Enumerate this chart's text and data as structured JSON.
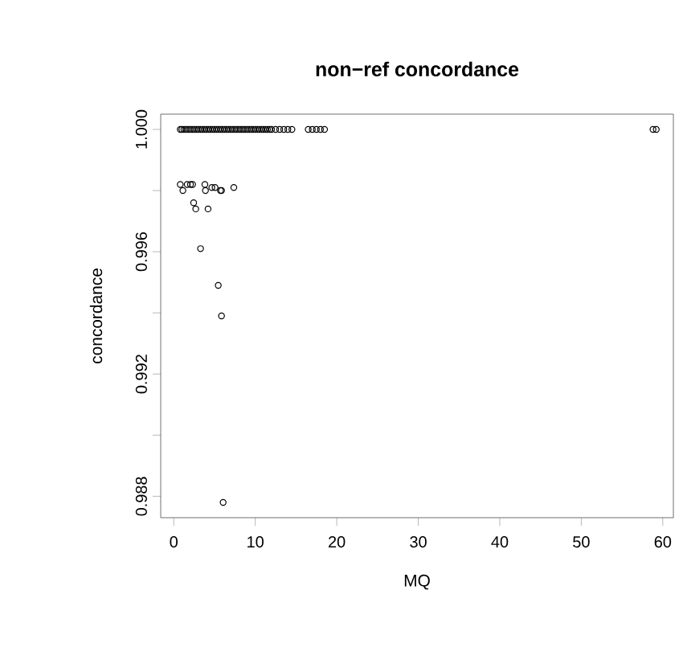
{
  "chart_data": {
    "type": "scatter",
    "title": "non−ref concordance",
    "xlabel": "MQ",
    "ylabel": "concordance",
    "series": [
      {
        "color": "#000000",
        "x": [
          0.8,
          1.0,
          1.25,
          1.5,
          1.75,
          2.0,
          2.25,
          2.5,
          2.75,
          3.0,
          3.25,
          3.5,
          3.75,
          4.0,
          4.25,
          4.5,
          4.75,
          5.0,
          5.25,
          5.5,
          5.75,
          6.0,
          6.25,
          6.5,
          6.75,
          7.0,
          7.25,
          7.5,
          7.75,
          8.0,
          8.25,
          8.5,
          8.75,
          9.0,
          9.25,
          9.5,
          9.75,
          10.0,
          10.25,
          10.5,
          10.75,
          11.0,
          11.25,
          11.5,
          11.75,
          12.0,
          12.5,
          13.0,
          13.5,
          14.0,
          14.5,
          16.5,
          17.0,
          17.5,
          18.0,
          18.5,
          58.8,
          59.2,
          0.8,
          1.12,
          1.65,
          2.05,
          2.31,
          2.44,
          2.7,
          3.82,
          3.89,
          4.21,
          4.67,
          5.07,
          5.73,
          5.86,
          7.37,
          3.29,
          5.46,
          5.86,
          6.06
        ],
        "values": [
          1,
          1,
          1,
          1,
          1,
          1,
          1,
          1,
          1,
          1,
          1,
          1,
          1,
          1,
          1,
          1,
          1,
          1,
          1,
          1,
          1,
          1,
          1,
          1,
          1,
          1,
          1,
          1,
          1,
          1,
          1,
          1,
          1,
          1,
          1,
          1,
          1,
          1,
          1,
          1,
          1,
          1,
          1,
          1,
          1,
          1,
          1,
          1,
          1,
          1,
          1,
          1,
          1,
          1,
          1,
          1,
          1,
          1,
          0.9982,
          0.998,
          0.9982,
          0.9982,
          0.9982,
          0.9976,
          0.9974,
          0.9982,
          0.998,
          0.9974,
          0.9981,
          0.9981,
          0.998,
          0.998,
          0.9981,
          0.9961,
          0.9949,
          0.9939,
          0.9878
        ]
      }
    ],
    "marker": "circle",
    "grid": false,
    "xlim": [
      -1.6,
      61.3
    ],
    "xticks": [
      0,
      10,
      20,
      30,
      40,
      50,
      60
    ],
    "ylim": [
      0.9873,
      1.0005
    ],
    "yticks": [
      {
        "value": 1.0,
        "label": "1.000"
      },
      {
        "value": 0.998,
        "label": null
      },
      0.996,
      {
        "value": 0.994,
        "label": null
      },
      0.992,
      {
        "value": 0.99,
        "label": null
      },
      0.988
    ]
  }
}
